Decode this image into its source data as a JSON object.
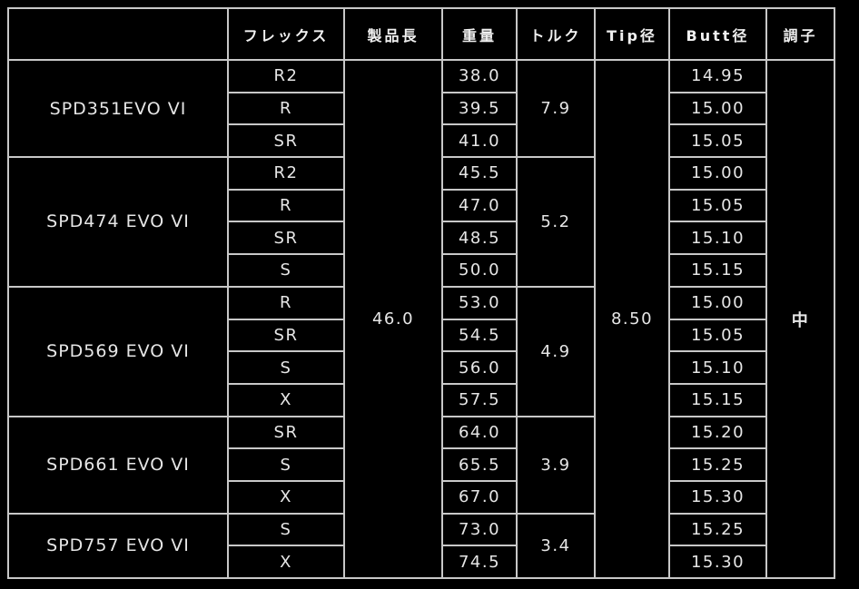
{
  "headers": [
    "",
    "フレックス",
    "製品長",
    "重量",
    "トルク",
    "Tip径",
    "Butt径",
    "調子"
  ],
  "length": "46.0",
  "tip": "8.50",
  "kick_point": "中",
  "models": [
    {
      "name": "SPD351EVO VI",
      "torque": "7.9",
      "rows": [
        {
          "flex": "R2",
          "weight": "38.0",
          "butt": "14.95"
        },
        {
          "flex": "R",
          "weight": "39.5",
          "butt": "15.00"
        },
        {
          "flex": "SR",
          "weight": "41.0",
          "butt": "15.05"
        }
      ]
    },
    {
      "name": "SPD474 EVO VI",
      "torque": "5.2",
      "rows": [
        {
          "flex": "R2",
          "weight": "45.5",
          "butt": "15.00"
        },
        {
          "flex": "R",
          "weight": "47.0",
          "butt": "15.05"
        },
        {
          "flex": "SR",
          "weight": "48.5",
          "butt": "15.10"
        },
        {
          "flex": "S",
          "weight": "50.0",
          "butt": "15.15"
        }
      ]
    },
    {
      "name": "SPD569 EVO VI",
      "torque": "4.9",
      "rows": [
        {
          "flex": "R",
          "weight": "53.0",
          "butt": "15.00"
        },
        {
          "flex": "SR",
          "weight": "54.5",
          "butt": "15.05"
        },
        {
          "flex": "S",
          "weight": "56.0",
          "butt": "15.10"
        },
        {
          "flex": "X",
          "weight": "57.5",
          "butt": "15.15"
        }
      ]
    },
    {
      "name": "SPD661 EVO VI",
      "torque": "3.9",
      "rows": [
        {
          "flex": "SR",
          "weight": "64.0",
          "butt": "15.20"
        },
        {
          "flex": "S",
          "weight": "65.5",
          "butt": "15.25"
        },
        {
          "flex": "X",
          "weight": "67.0",
          "butt": "15.30"
        }
      ]
    },
    {
      "name": "SPD757 EVO VI",
      "torque": "3.4",
      "rows": [
        {
          "flex": "S",
          "weight": "73.0",
          "butt": "15.25"
        },
        {
          "flex": "X",
          "weight": "74.5",
          "butt": "15.30"
        }
      ]
    }
  ]
}
